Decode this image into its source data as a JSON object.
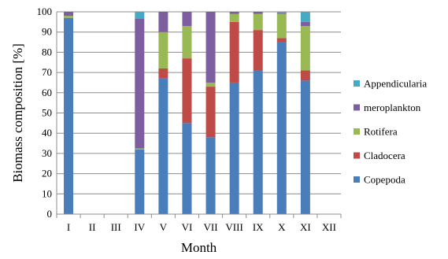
{
  "chart_data": {
    "type": "stacked-bar",
    "xlabel": "Month",
    "ylabel": "Biomass composition [%]",
    "ylim": [
      0,
      100
    ],
    "yticks": [
      0,
      10,
      20,
      30,
      40,
      50,
      60,
      70,
      80,
      90,
      100
    ],
    "grid": true,
    "legend_position": "right",
    "categories": [
      "I",
      "II",
      "III",
      "IV",
      "V",
      "VI",
      "VII",
      "VIII",
      "IX",
      "X",
      "XI",
      "XII"
    ],
    "series": [
      {
        "name": "Copepoda",
        "color": "#4a7ebb",
        "values": [
          97,
          0,
          0,
          32,
          67,
          45,
          38,
          65,
          71,
          85,
          66,
          0
        ]
      },
      {
        "name": "Cladocera",
        "color": "#be4b48",
        "values": [
          0,
          0,
          0,
          0,
          5,
          32,
          25,
          30,
          20,
          2,
          5,
          0
        ]
      },
      {
        "name": "Rotifera",
        "color": "#98b954",
        "values": [
          1,
          0,
          0,
          0.5,
          18,
          16,
          2,
          4,
          8,
          12,
          22,
          0
        ]
      },
      {
        "name": "meroplankton",
        "color": "#7d5fa0",
        "values": [
          2,
          0,
          0,
          64,
          10,
          7,
          35,
          1,
          1,
          0.5,
          2,
          0
        ]
      },
      {
        "name": "Appendicularia",
        "color": "#46aac5",
        "values": [
          0,
          0,
          0,
          3.5,
          0,
          0,
          0,
          0,
          0,
          0.5,
          5,
          0
        ]
      }
    ],
    "legend_order": [
      "Appendicularia",
      "meroplankton",
      "Rotifera",
      "Cladocera",
      "Copepoda"
    ]
  }
}
